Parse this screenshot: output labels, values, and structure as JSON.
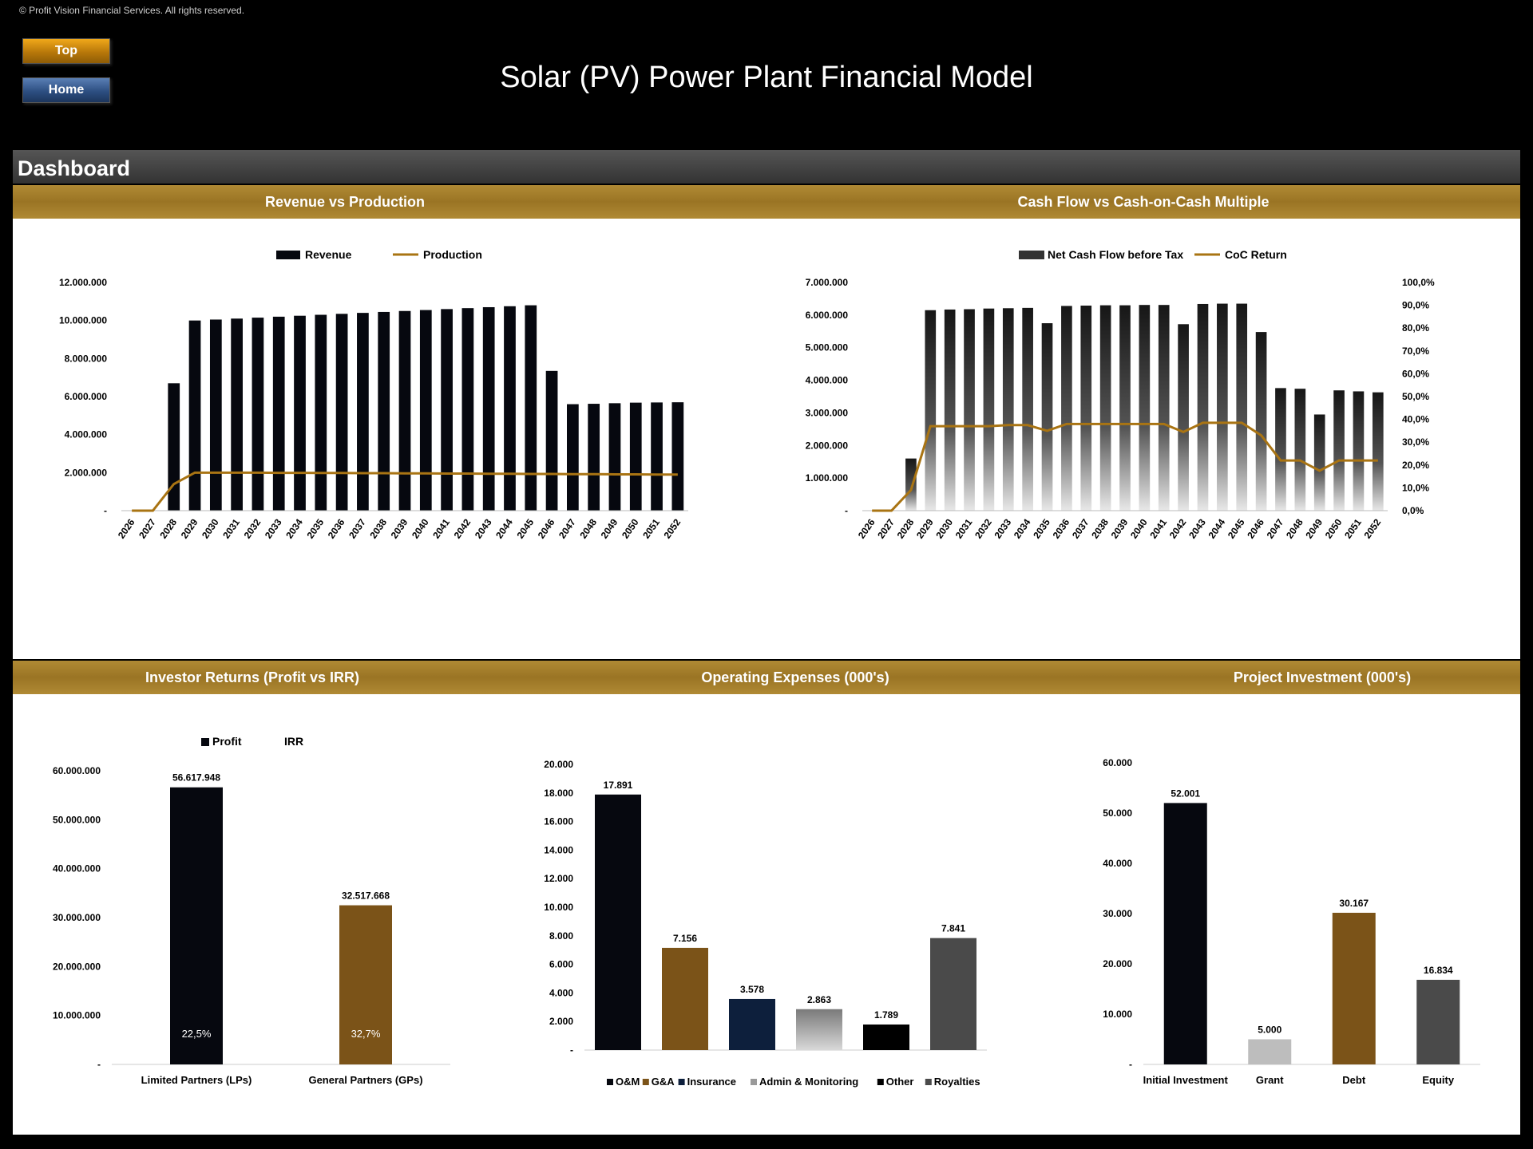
{
  "copyright": "© Profit Vision Financial Services. All rights reserved.",
  "nav": {
    "top": "Top",
    "home": "Home"
  },
  "title": "Solar (PV) Power Plant Financial Model",
  "section": "Dashboard",
  "colors": {
    "gold": "#9a7424",
    "gold_line": "#a97413",
    "dark": "#06080f",
    "brown": "#7b5318",
    "navy": "#0d1f3c",
    "grey": "#4a4a4a"
  },
  "chart_titles": {
    "revenue": "Revenue vs Production",
    "cashflow": "Cash Flow vs Cash-on-Cash Multiple",
    "investor": "Investor Returns (Profit vs IRR)",
    "opex": "Operating Expenses (000's)",
    "investment": "Project Investment (000's)"
  },
  "chart_data": [
    {
      "type": "bar",
      "title": "Revenue vs Production",
      "categories": [
        "2026",
        "2027",
        "2028",
        "2029",
        "2030",
        "2031",
        "2032",
        "2033",
        "2034",
        "2035",
        "2036",
        "2037",
        "2038",
        "2039",
        "2040",
        "2041",
        "2042",
        "2043",
        "2044",
        "2045",
        "2046",
        "2047",
        "2048",
        "2049",
        "2050",
        "2051",
        "2052"
      ],
      "series": [
        {
          "name": "Revenue",
          "kind": "bar",
          "values": [
            0,
            0,
            6700000,
            10000000,
            10050000,
            10100000,
            10150000,
            10200000,
            10250000,
            10300000,
            10350000,
            10400000,
            10450000,
            10500000,
            10550000,
            10600000,
            10650000,
            10700000,
            10750000,
            10800000,
            7350000,
            5600000,
            5620000,
            5650000,
            5680000,
            5690000,
            5700000
          ]
        },
        {
          "name": "Production",
          "kind": "line",
          "values": [
            0,
            0,
            1400000,
            2000000,
            2000000,
            2000000,
            2000000,
            1990000,
            1990000,
            1980000,
            1980000,
            1970000,
            1970000,
            1960000,
            1960000,
            1950000,
            1950000,
            1940000,
            1940000,
            1930000,
            1930000,
            1920000,
            1920000,
            1910000,
            1910000,
            1900000,
            1900000
          ]
        }
      ],
      "yticks": [
        "-",
        "2.000.000",
        "4.000.000",
        "6.000.000",
        "8.000.000",
        "10.000.000",
        "12.000.000"
      ],
      "ylim": [
        0,
        12000000
      ],
      "legend": "top"
    },
    {
      "type": "bar",
      "title": "Cash Flow vs Cash-on-Cash Multiple",
      "categories": [
        "2026",
        "2027",
        "2028",
        "2029",
        "2030",
        "2031",
        "2032",
        "2033",
        "2034",
        "2035",
        "2036",
        "2037",
        "2038",
        "2039",
        "2040",
        "2041",
        "2042",
        "2043",
        "2044",
        "2045",
        "2046",
        "2047",
        "2048",
        "2049",
        "2050",
        "2051",
        "2052"
      ],
      "series": [
        {
          "name": "Net Cash Flow before Tax",
          "kind": "bar",
          "axis": "left",
          "values": [
            0,
            0,
            1600000,
            6150000,
            6170000,
            6180000,
            6200000,
            6210000,
            6220000,
            5750000,
            6280000,
            6290000,
            6300000,
            6300000,
            6310000,
            6310000,
            5720000,
            6340000,
            6350000,
            6350000,
            5480000,
            3760000,
            3740000,
            2950000,
            3690000,
            3660000,
            3630000
          ]
        },
        {
          "name": "CoC Return",
          "kind": "line",
          "axis": "right",
          "values": [
            0.0,
            0.0,
            0.09,
            0.37,
            0.37,
            0.37,
            0.37,
            0.375,
            0.375,
            0.35,
            0.38,
            0.38,
            0.38,
            0.38,
            0.38,
            0.38,
            0.345,
            0.385,
            0.385,
            0.385,
            0.33,
            0.22,
            0.22,
            0.175,
            0.22,
            0.22,
            0.22
          ]
        }
      ],
      "yticks": [
        "-",
        "1.000.000",
        "2.000.000",
        "3.000.000",
        "4.000.000",
        "5.000.000",
        "6.000.000",
        "7.000.000"
      ],
      "ylim": [
        0,
        7000000
      ],
      "y2ticks": [
        "0,0%",
        "10,0%",
        "20,0%",
        "30,0%",
        "40,0%",
        "50,0%",
        "60,0%",
        "70,0%",
        "80,0%",
        "90,0%",
        "100,0%"
      ],
      "y2lim": [
        0,
        1
      ],
      "legend": "top"
    },
    {
      "type": "bar",
      "title": "Investor Returns (Profit vs IRR)",
      "categories": [
        "Limited Partners (LPs)",
        "General Partners (GPs)"
      ],
      "series": [
        {
          "name": "Profit",
          "values": [
            56617948,
            32517668
          ],
          "labels": [
            "56.617.948",
            "32.517.668"
          ]
        },
        {
          "name": "IRR",
          "values": [
            0.225,
            0.327
          ],
          "labels": [
            "22,5%",
            "32,7%"
          ]
        }
      ],
      "yticks": [
        "-",
        "10.000.000",
        "20.000.000",
        "30.000.000",
        "40.000.000",
        "50.000.000",
        "60.000.000"
      ],
      "ylim": [
        0,
        60000000
      ],
      "legend": "top"
    },
    {
      "type": "bar",
      "title": "Operating Expenses (000's)",
      "categories": [
        "O&M",
        "G&A",
        "Insurance",
        "Admin & Monitoring",
        "Other",
        "Royalties"
      ],
      "values": [
        17891,
        7156,
        3578,
        2863,
        1789,
        7841
      ],
      "labels": [
        "17.891",
        "7.156",
        "3.578",
        "2.863",
        "1.789",
        "7.841"
      ],
      "colors": [
        "#06080f",
        "#7b5318",
        "#0d1f3c",
        "#9a9a9a",
        "#000000",
        "#4a4a4a"
      ],
      "yticks": [
        "-",
        "2.000",
        "4.000",
        "6.000",
        "8.000",
        "10.000",
        "12.000",
        "14.000",
        "16.000",
        "18.000",
        "20.000"
      ],
      "ylim": [
        0,
        20000
      ],
      "legend": "bottom"
    },
    {
      "type": "bar",
      "title": "Project Investment (000's)",
      "categories": [
        "Initial Investment",
        "Grant",
        "Debt",
        "Equity"
      ],
      "values": [
        52001,
        5000,
        30167,
        16834
      ],
      "labels": [
        "52.001",
        "5.000",
        "30.167",
        "16.834"
      ],
      "colors": [
        "#06080f",
        "#bdbdbd",
        "#7b5318",
        "#4a4a4a"
      ],
      "yticks": [
        "-",
        "10.000",
        "20.000",
        "30.000",
        "40.000",
        "50.000",
        "60.000"
      ],
      "ylim": [
        0,
        60000
      ]
    }
  ]
}
